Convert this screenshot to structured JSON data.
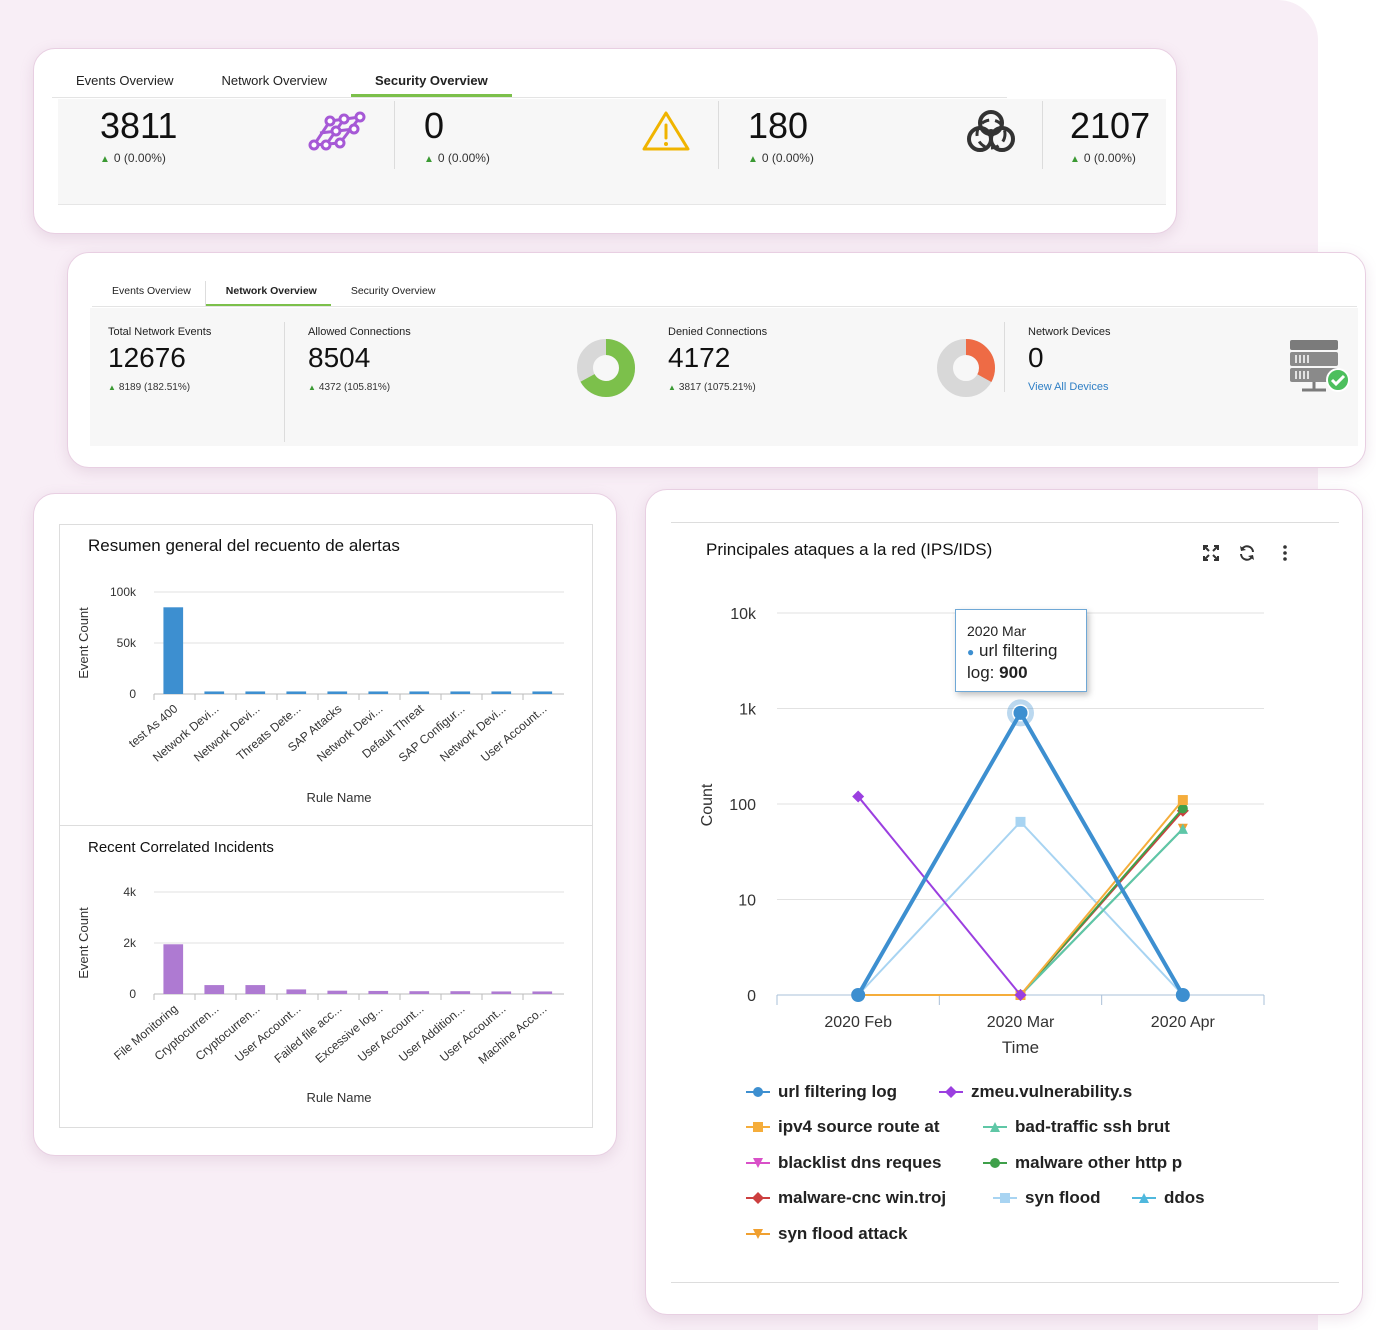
{
  "security_panel": {
    "tabs": [
      {
        "label": "Events Overview",
        "active": false
      },
      {
        "label": "Network Overview",
        "active": false
      },
      {
        "label": "Security Overview",
        "active": true
      }
    ],
    "metrics": [
      {
        "value": "3811",
        "delta": "0 (0.00%)",
        "icon": "network-nodes-icon",
        "icon_color": "#a659d6"
      },
      {
        "value": "0",
        "delta": "0 (0.00%)",
        "icon": "warning-icon",
        "icon_color": "#f0b400"
      },
      {
        "value": "180",
        "delta": "0 (0.00%)",
        "icon": "biohazard-icon",
        "icon_color": "#333333"
      },
      {
        "value": "2107",
        "delta": "0 (0.00%)",
        "icon": "",
        "icon_color": ""
      }
    ]
  },
  "network_panel": {
    "tabs": [
      {
        "label": "Events Overview",
        "active": false
      },
      {
        "label": "Network Overview",
        "active": true
      },
      {
        "label": "Security Overview",
        "active": false
      }
    ],
    "total_events": {
      "label": "Total Network Events",
      "value": "12676",
      "delta": "8189 (182.51%)"
    },
    "allowed": {
      "label": "Allowed Connections",
      "value": "8504",
      "delta": "4372 (105.81%)",
      "fraction": 0.67,
      "color": "#7cc04b"
    },
    "denied": {
      "label": "Denied Connections",
      "value": "4172",
      "delta": "3817 (1075.21%)",
      "fraction": 0.33,
      "color": "#ee6b45"
    },
    "devices": {
      "label": "Network Devices",
      "value": "0",
      "link": "View All Devices",
      "icon": "server-check-icon"
    }
  },
  "alerts_chart": {
    "title": "Resumen general del recuento de alertas",
    "chart_data": {
      "type": "bar",
      "categories": [
        "test As 400",
        "Network Devi...",
        "Network Devi...",
        "Threats Dete...",
        "SAP Attacks",
        "Network Devi...",
        "Default Threat",
        "SAP Configur...",
        "Network Devi...",
        "User Account..."
      ],
      "values": [
        85000,
        2500,
        2500,
        2500,
        2500,
        2500,
        2500,
        2500,
        2500,
        2500
      ],
      "ylim": [
        0,
        100000
      ],
      "yticks": [
        "0",
        "50k",
        "100k"
      ],
      "xlabel": "Rule Name",
      "ylabel": "Event Count",
      "color": "#3d8fd0"
    }
  },
  "incidents_chart": {
    "title": "Recent Correlated Incidents",
    "chart_data": {
      "type": "bar",
      "categories": [
        "File Monitoring",
        "Cryptocurren...",
        "Cryptocurren...",
        "User Account...",
        "Failed file acc...",
        "Excessive log...",
        "User Account...",
        "User Addition...",
        "User Account...",
        "Machine Acco..."
      ],
      "values": [
        1950,
        350,
        350,
        180,
        130,
        120,
        110,
        110,
        100,
        100
      ],
      "ylim": [
        0,
        4000
      ],
      "yticks": [
        "0",
        "2k",
        "4k"
      ],
      "xlabel": "Rule Name",
      "ylabel": "Event Count",
      "color": "#ae7ad2"
    }
  },
  "attacks_chart": {
    "title": "Principales ataques a la red (IPS/IDS)",
    "toolbar": {
      "expand_icon": "expand-icon",
      "refresh_icon": "refresh-icon",
      "menu_icon": "kebab-menu-icon"
    },
    "tooltip": {
      "period": "2020 Mar",
      "series": "url filtering",
      "label": "log:",
      "value": "900"
    },
    "chart_data": {
      "type": "line",
      "x": [
        "2020 Feb",
        "2020 Mar",
        "2020 Apr"
      ],
      "xlabel": "Time",
      "ylabel": "Count",
      "yscale": "log",
      "yticks": [
        "0",
        "10",
        "100",
        "1k",
        "10k"
      ],
      "series": [
        {
          "name": "url filtering log",
          "values": [
            0,
            900,
            0
          ],
          "color": "#3d8fd0",
          "marker": "circle",
          "width": 4
        },
        {
          "name": "zmeu.vulnerability.s",
          "values": [
            120,
            0,
            null
          ],
          "color": "#9b3fe0",
          "marker": "diamond",
          "width": 2
        },
        {
          "name": "ipv4 source route at",
          "values": [
            0,
            0,
            110
          ],
          "color": "#f5ad3b",
          "marker": "square",
          "width": 2
        },
        {
          "name": "bad-traffic ssh brut",
          "values": [
            null,
            0,
            55
          ],
          "color": "#5fc7a6",
          "marker": "triangle",
          "width": 2
        },
        {
          "name": "blacklist dns reques",
          "values": [
            null,
            0,
            null
          ],
          "color": "#d950c8",
          "marker": "triangle-down",
          "width": 2
        },
        {
          "name": "malware other http p",
          "values": [
            null,
            0,
            90
          ],
          "color": "#3fa04a",
          "marker": "circle",
          "width": 2
        },
        {
          "name": "malware-cnc win.troj",
          "values": [
            null,
            0,
            85
          ],
          "color": "#cc3f3f",
          "marker": "diamond",
          "width": 2
        },
        {
          "name": "syn flood",
          "values": [
            0,
            65,
            0
          ],
          "color": "#a8d4f2",
          "marker": "square",
          "width": 2
        },
        {
          "name": "ddos",
          "values": [
            null,
            0,
            55
          ],
          "color": "#4fb8dd",
          "marker": "triangle",
          "width": 2
        },
        {
          "name": "syn flood attack",
          "values": [
            0,
            0,
            55
          ],
          "color": "#f0a030",
          "marker": "triangle-down",
          "width": 2
        }
      ]
    }
  }
}
